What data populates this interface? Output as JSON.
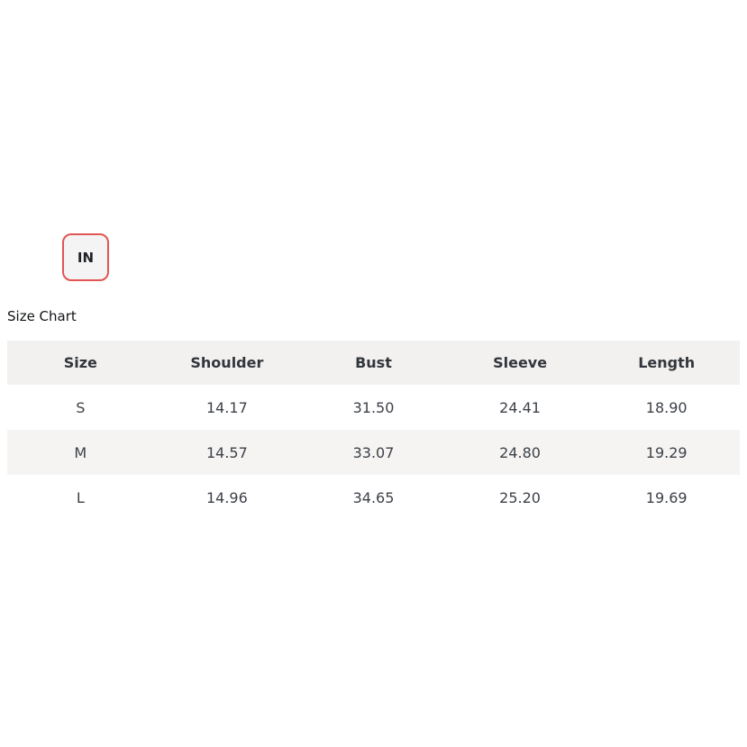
{
  "unit_toggle": {
    "label": "IN"
  },
  "size_chart": {
    "title": "Size Chart",
    "headers": [
      "Size",
      "Shoulder",
      "Bust",
      "Sleeve",
      "Length"
    ],
    "rows": [
      [
        "S",
        "14.17",
        "31.50",
        "24.41",
        "18.90"
      ],
      [
        "M",
        "14.57",
        "33.07",
        "24.80",
        "19.29"
      ],
      [
        "L",
        "14.96",
        "34.65",
        "25.20",
        "19.69"
      ]
    ]
  },
  "colors": {
    "accent_red": "#e25555",
    "header_bg": "#f2f1ef",
    "stripe_bg": "#f5f4f2",
    "header_text": "#32363c",
    "body_text": "#3d4148"
  }
}
